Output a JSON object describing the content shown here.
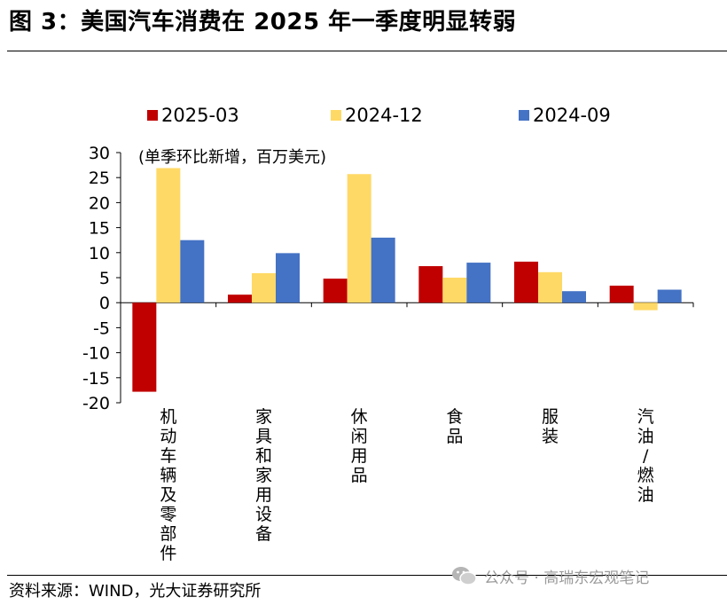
{
  "title": "图 3：美国汽车消费在 2025 年一季度明显转弱",
  "source": "资料来源：WIND，光大证券研究所",
  "watermark": "公众号 · 高瑞东宏观笔记",
  "watermark_icon": "wechat-icon",
  "chart_data": {
    "type": "bar",
    "note": "(单季环比新增，百万美元)",
    "categories": [
      "机动车辆及零部件",
      "家具和家用设备",
      "休闲用品",
      "食品",
      "服装",
      "汽油/燃油"
    ],
    "series": [
      {
        "name": "2025-03",
        "color": "#c00000",
        "values": [
          -17.8,
          1.6,
          4.8,
          7.3,
          8.2,
          3.4
        ]
      },
      {
        "name": "2024-12",
        "color": "#ffd966",
        "values": [
          26.9,
          5.9,
          25.7,
          5.0,
          6.1,
          -1.5
        ]
      },
      {
        "name": "2024-09",
        "color": "#4472c4",
        "values": [
          12.5,
          9.9,
          13.0,
          8.0,
          2.3,
          2.6
        ]
      }
    ],
    "ylim": [
      -20,
      30
    ],
    "yticks": [
      30,
      25,
      20,
      15,
      10,
      5,
      0,
      -5,
      -10,
      -15,
      -20
    ],
    "legend_position": "top"
  }
}
